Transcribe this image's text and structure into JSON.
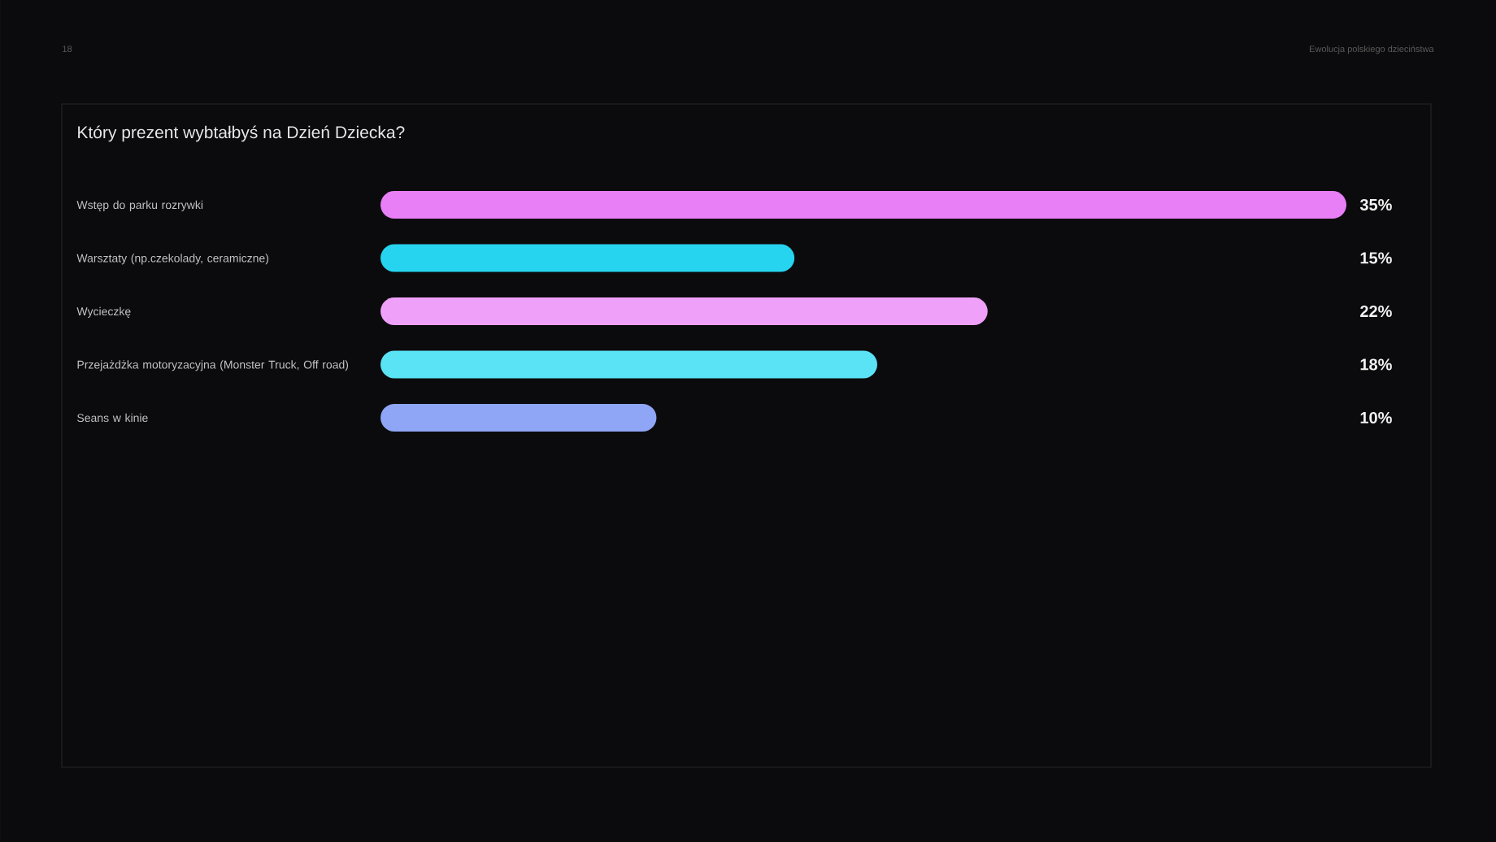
{
  "chart_data": {
    "type": "bar",
    "orientation": "horizontal",
    "title": "Który prezent wybtałbyś na Dzień Dziecka?",
    "annotations": [
      "18",
      "Ewolucja polskiego dzieciństwa"
    ],
    "categories": [
      "Wstęp do parku rozrywki",
      "Warsztaty (np.czekolady, ceramiczne)",
      "Wycieczkę",
      "Przejażdżka motoryzacyjna (Monster Truck, Off road)",
      "Seans w kinie"
    ],
    "values": [
      35,
      15,
      22,
      18,
      10
    ],
    "colors": [
      "#e87ff7",
      "#26d4f0",
      "#efa1fa",
      "#5ae2f5",
      "#8fa5f5"
    ],
    "value_labels": [
      "35%",
      "15%",
      "22%",
      "18%",
      "10%"
    ],
    "xlim": [
      0,
      35
    ],
    "tick_labels": "y"
  }
}
